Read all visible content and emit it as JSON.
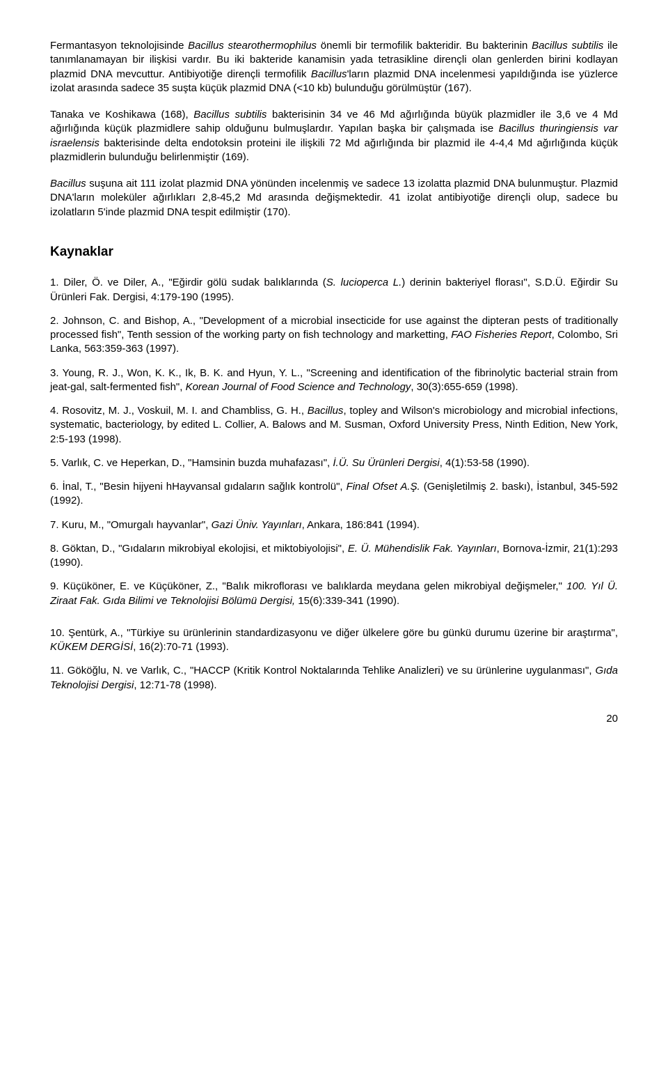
{
  "paragraphs": {
    "p1_a": "Fermantasyon teknolojisinde ",
    "p1_i1": "Bacillus stearothermophilus",
    "p1_b": " önemli bir termofilik bakteridir. Bu bakterinin ",
    "p1_i2": "Bacillus subtilis",
    "p1_c": " ile tanımlanamayan bir ilişkisi vardır. Bu iki bakteride kanamisin yada tetrasikline dirençli olan genlerden birini kodlayan plazmid DNA mevcuttur. Antibiyotiğe dirençli termofilik ",
    "p1_i3": "Bacillus",
    "p1_d": "'ların plazmid DNA incelenmesi yapıldığında ise yüzlerce izolat arasında sadece 35 suşta küçük plazmid DNA (<10 kb) bulunduğu görülmüştür (167).",
    "p2_a": "Tanaka ve Koshikawa (168), ",
    "p2_i1": "Bacillus subtilis",
    "p2_b": " bakterisinin 34 ve 46 Md ağırlığında büyük plazmidler ile 3,6 ve 4 Md ağırlığında küçük plazmidlere sahip olduğunu bulmuşlardır. Yapılan başka bir çalışmada ise ",
    "p2_i2": "Bacillus thuringiensis var israelensis",
    "p2_c": " bakterisinde delta endotoksin proteini ile ilişkili 72 Md ağırlığında bir plazmid ile 4-4,4 Md ağırlığında küçük plazmidlerin bulunduğu belirlenmiştir (169).",
    "p3_i1": "Bacillus",
    "p3_a": " suşuna ait 111 izolat plazmid DNA yönünden incelenmiş ve sadece 13 izolatta plazmid DNA bulunmuştur. Plazmid DNA'ların moleküler ağırlıkları 2,8-45,2 Md arasında değişmektedir. 41 izolat antibiyotiğe dirençli olup, sadece bu izolatların 5'inde plazmid DNA tespit edilmiştir (170)."
  },
  "heading": "Kaynaklar",
  "refs": {
    "r1_a": "1. Diler, Ö. ve Diler, A., \"Eğirdir gölü sudak balıklarında (",
    "r1_i1": "S. lucioperca L.",
    "r1_b": ") derinin bakteriyel florası\", S.D.Ü. Eğirdir Su Ürünleri Fak. Dergisi, 4:179-190 (1995).",
    "r2_a": "2. Johnson, C. and Bishop, A., \"Development of a microbial insecticide for use against the dipteran pests of traditionally processed fish\", Tenth session of the working party on fish technology and marketting, ",
    "r2_i1": "FAO Fisheries Report",
    "r2_b": ", Colombo, Sri Lanka, 563:359-363 (1997).",
    "r3_a": "3. Young, R. J., Won, K. K., Ik, B. K. and Hyun, Y. L., \"Screening and identification of the fibrinolytic bacterial strain from jeat-gal, salt-fermented fish\", ",
    "r3_i1": "Korean Journal of Food Science and Technology",
    "r3_b": ", 30(3):655-659 (1998).",
    "r4_a": "4. Rosovitz, M. J., Voskuil, M. I. and Chambliss, G. H., ",
    "r4_i1": "Bacillus",
    "r4_b": ", topley and Wilson's microbiology and microbial infections, systematic, bacteriology, by edited L. Collier, A. Balows and M. Susman, Oxford University Press, Ninth Edition, New York, 2:5-193 (1998).",
    "r5_a": "5. Varlık, C. ve Heperkan, D., \"Hamsinin buzda muhafazası\", ",
    "r5_i1": "İ.Ü. Su Ürünleri Dergisi",
    "r5_b": ", 4(1):53-58 (1990).",
    "r6_a": "6. İnal, T., \"Besin hijyeni hHayvansal gıdaların sağlık kontrolü\", ",
    "r6_i1": "Final Ofset A.Ş.",
    "r6_b": " (Genişletilmiş 2. baskı), İstanbul, 345-592 (1992).",
    "r7_a": "7. Kuru, M., \"Omurgalı hayvanlar\", ",
    "r7_i1": "Gazi Üniv. Yayınları",
    "r7_b": ", Ankara, 186:841 (1994).",
    "r8_a": "8. Göktan, D., \"Gıdaların mikrobiyal ekolojisi, et miktobiyolojisi\", ",
    "r8_i1": "E. Ü. Mühendislik Fak. Yayınları",
    "r8_b": ", Bornova-İzmir, 21(1):293 (1990).",
    "r9_a": "9. Küçüköner, E. ve Küçüköner, Z., \"Balık mikroflorası ve balıklarda meydana gelen mikrobiyal değişmeler,\" ",
    "r9_i1": "100. Yıl Ü. Ziraat Fak. Gıda Bilimi ve Teknolojisi Bölümü Dergisi,",
    "r9_b": " 15(6):339-341 (1990).",
    "r10_a": "10. Şentürk, A., \"Türkiye su ürünlerinin standardizasyonu ve diğer ülkelere göre bu günkü durumu üzerine bir araştırma\", ",
    "r10_i1": "KÜKEM DERGİSİ",
    "r10_b": ", 16(2):70-71 (1993).",
    "r11_a": "11.   Gököğlu, N. ve Varlık, C., \"HACCP (Kritik Kontrol Noktalarında Tehlike Analizleri) ve su ürünlerine uygulanması\", ",
    "r11_i1": "Gıda Teknolojisi Dergisi",
    "r11_b": ", 12:71-78 (1998)."
  },
  "pageNumber": "20"
}
